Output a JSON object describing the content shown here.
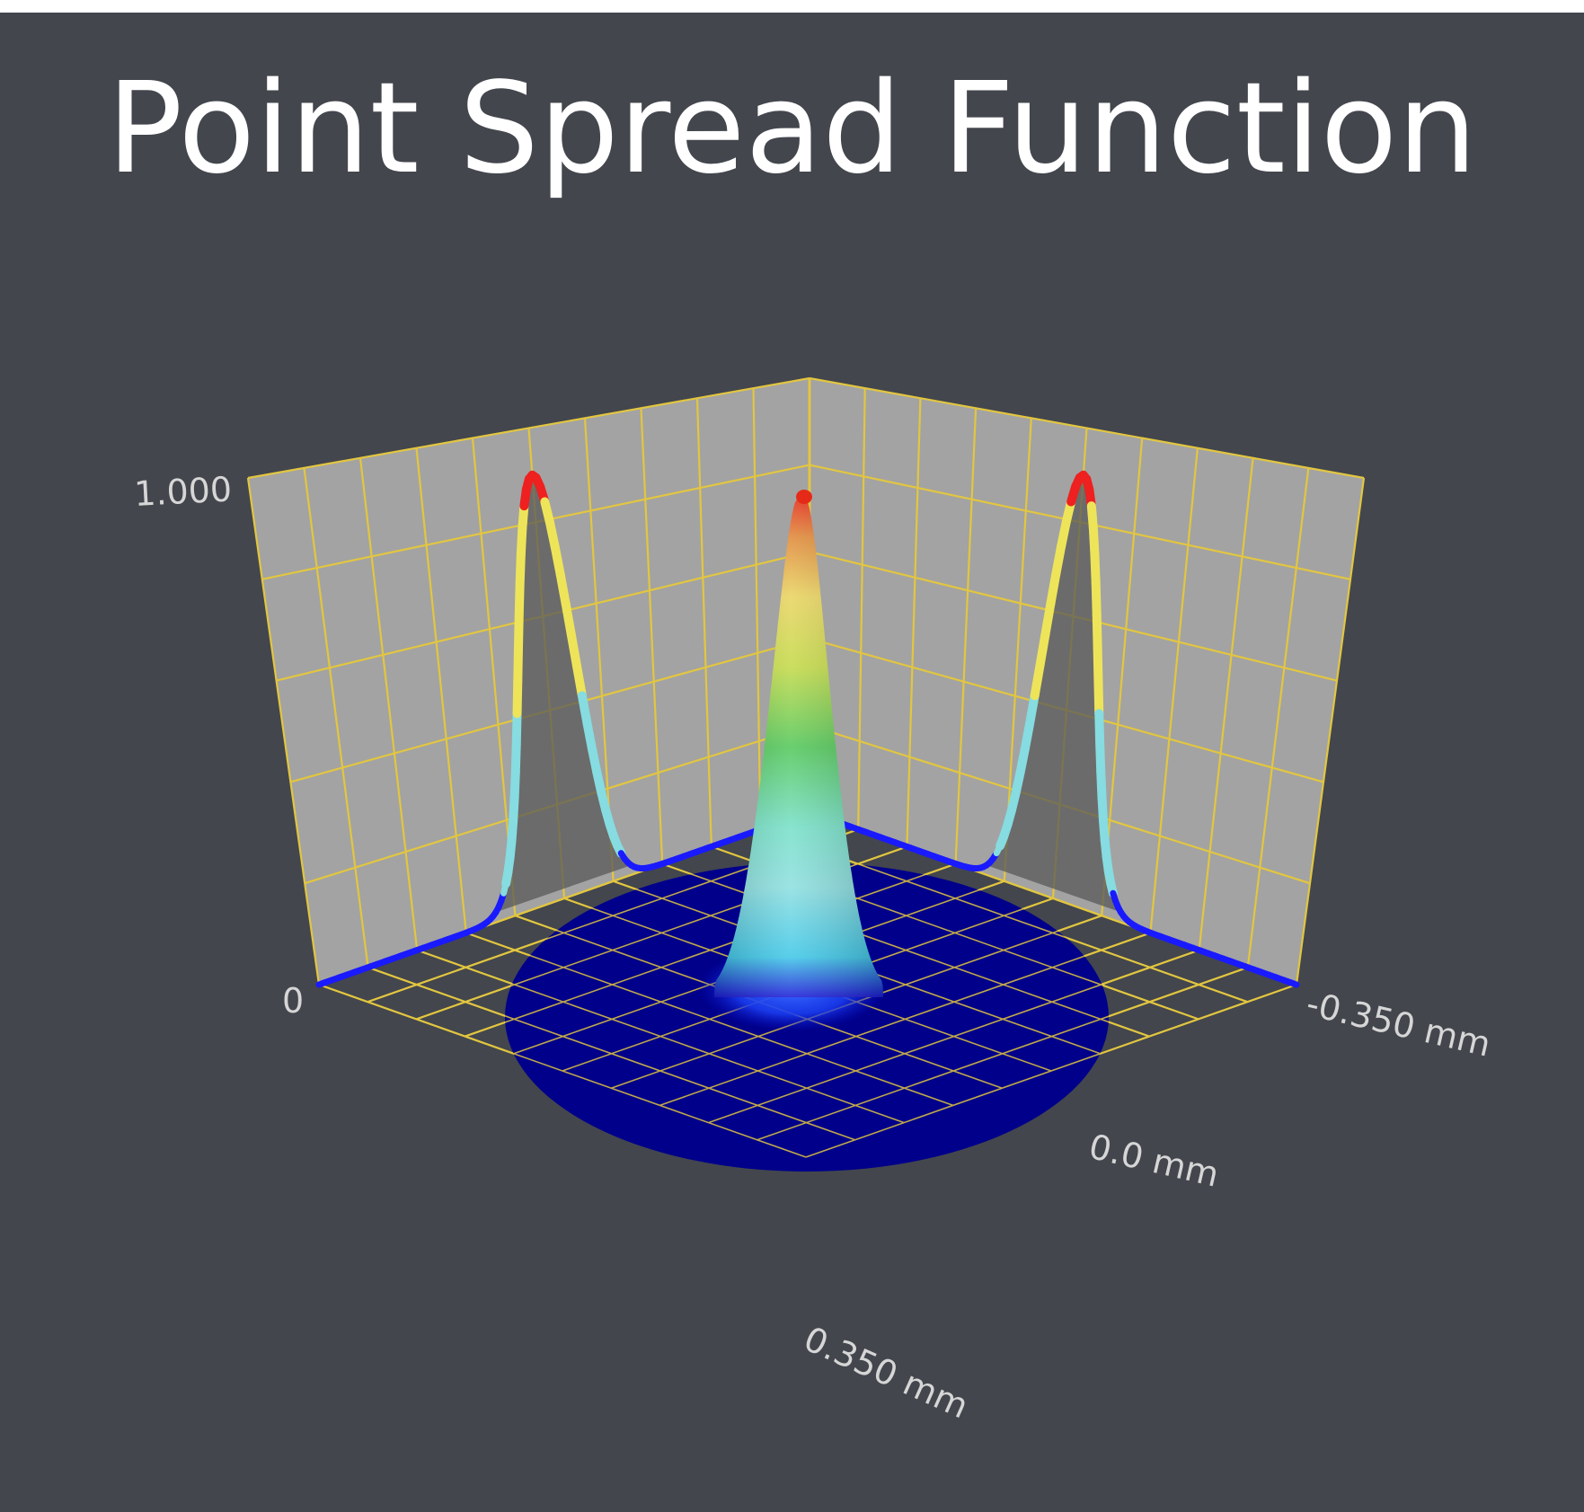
{
  "chart_data": {
    "type": "surface",
    "title": "Point Spread Function",
    "zlim": [
      0,
      1
    ],
    "z_tick_labels": [
      "1.000",
      "0"
    ],
    "x_tick_labels": [
      "-0.350 mm",
      "0.0 mm",
      "0.350 mm"
    ],
    "xlim": [
      -0.35,
      0.35
    ],
    "ylim": [
      -0.35,
      0.35
    ],
    "grid": true,
    "peak": {
      "x": 0.0,
      "y": 0.0,
      "z": 1.0
    },
    "sigma_mm": 0.035,
    "projections": [
      {
        "plane": "left-wall",
        "peak": 1.0
      },
      {
        "plane": "right-wall",
        "peak": 1.0
      }
    ],
    "colors": {
      "grid": "#e2c640",
      "wall": "#a3a3a3",
      "floor_disc": "#00008a",
      "colormap": [
        "#1a1aff",
        "#86dce0",
        "#66c95a",
        "#eee45a",
        "#ee2020"
      ]
    }
  }
}
